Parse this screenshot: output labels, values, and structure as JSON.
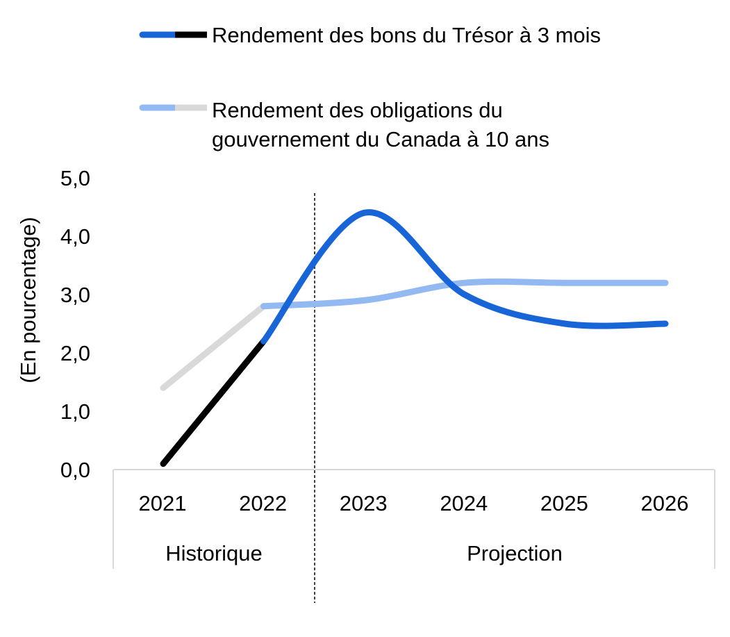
{
  "chart_data": {
    "type": "line",
    "ylabel": "(En pourcentage)",
    "ylim": [
      0,
      5
    ],
    "yticks": [
      "0,0",
      "1,0",
      "2,0",
      "3,0",
      "4,0",
      "5,0"
    ],
    "categories": [
      "2021",
      "2022",
      "2023",
      "2024",
      "2025",
      "2026"
    ],
    "groups": [
      {
        "label": "Historique",
        "categories": [
          "2021",
          "2022"
        ]
      },
      {
        "label": "Projection",
        "categories": [
          "2023",
          "2024",
          "2025",
          "2026"
        ]
      }
    ],
    "series": [
      {
        "name": "Rendement des bons du Trésor à 3 mois",
        "values": [
          0.1,
          2.2,
          4.4,
          3.0,
          2.5,
          2.5
        ],
        "historical_color": "#000000",
        "projection_color": "#1765d6"
      },
      {
        "name_lines": [
          "Rendement des obligations du",
          "gouvernement du Canada à 10 ans"
        ],
        "values": [
          1.4,
          2.8,
          2.9,
          3.2,
          3.2,
          3.2
        ],
        "historical_color": "#d9d9d9",
        "projection_color": "#93b9f3"
      }
    ],
    "legend": "top",
    "grid": false,
    "divider": "dashed vertical line between 2022 and 2023"
  }
}
